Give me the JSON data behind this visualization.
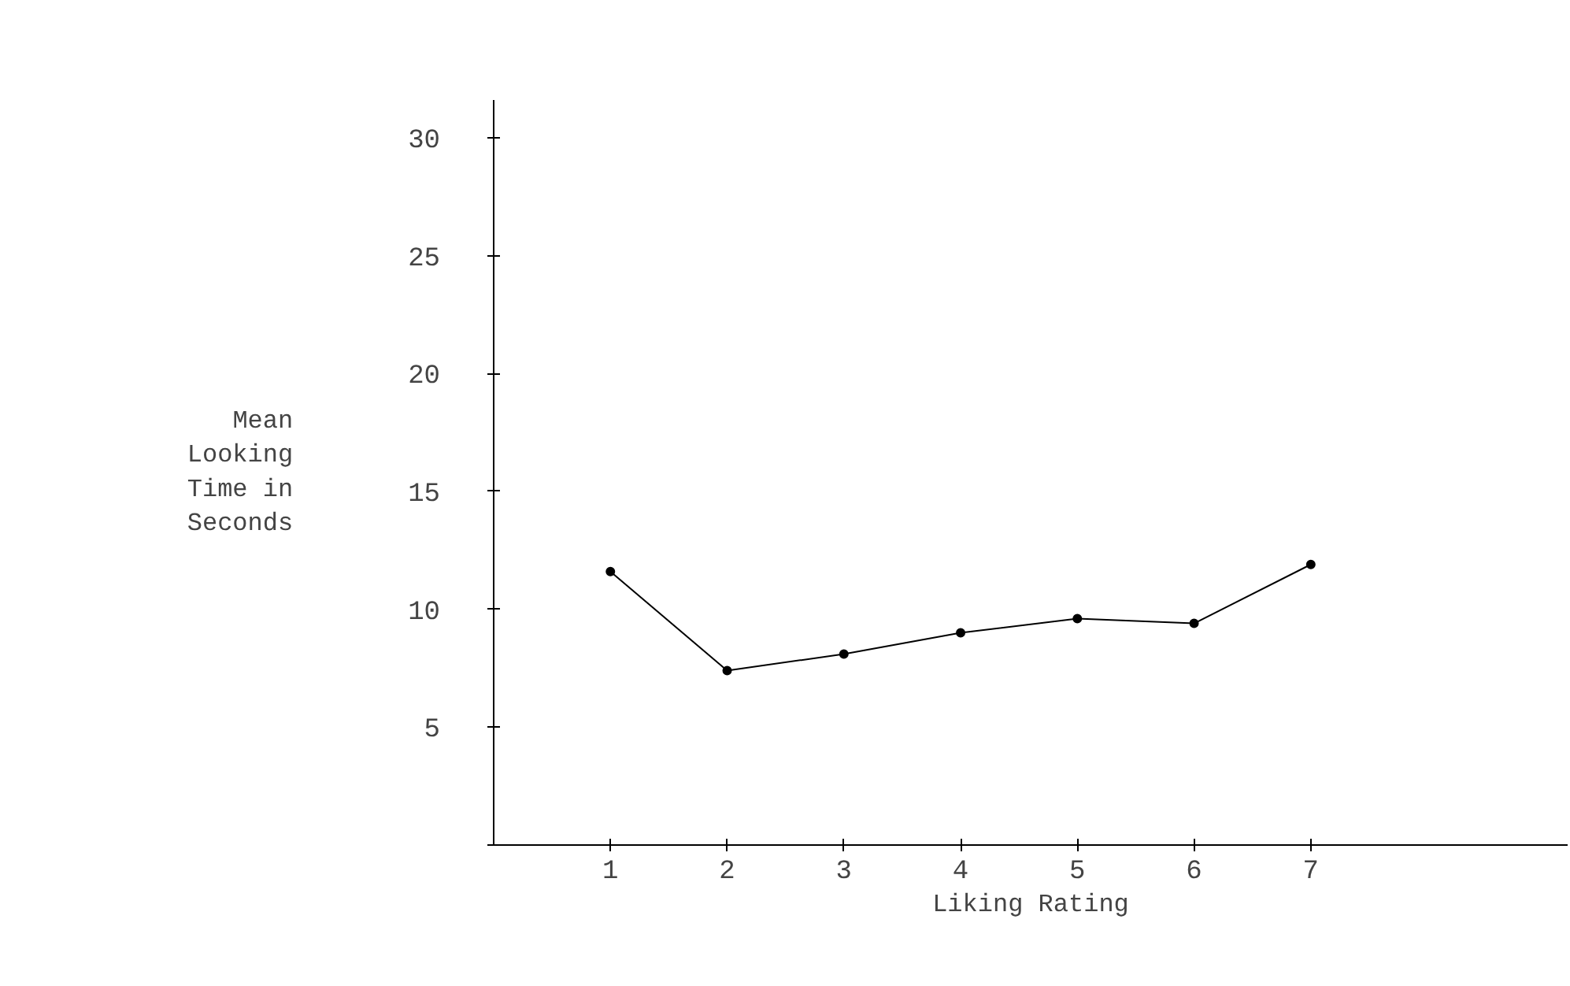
{
  "chart_data": {
    "type": "line",
    "xlabel": "Liking Rating",
    "ylabel": "Mean\nLooking\nTime in\nSeconds",
    "x": [
      1,
      2,
      3,
      4,
      5,
      6,
      7
    ],
    "series": [
      {
        "color": "#000000",
        "values": [
          11.6,
          7.4,
          8.1,
          9.0,
          9.6,
          9.4,
          11.9
        ]
      }
    ],
    "xlim": [
      0,
      9.2
    ],
    "xticks": [
      1,
      2,
      3,
      4,
      5,
      6,
      7
    ],
    "ylim": [
      0,
      31.6
    ],
    "yticks": [
      {
        "value": 0,
        "label": null
      },
      5,
      10,
      15,
      20,
      25,
      30
    ],
    "grid": false,
    "marker": "circle",
    "line_style": "solid"
  }
}
